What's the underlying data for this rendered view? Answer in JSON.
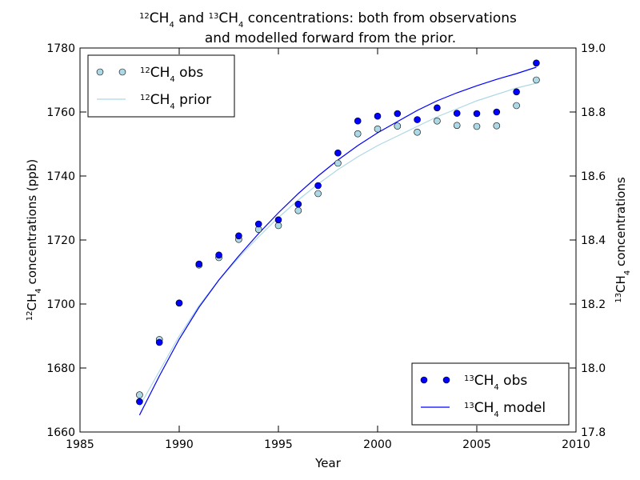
{
  "chart_data": {
    "type": "scatter",
    "title": {
      "line1_parts": [
        "12",
        "CH",
        "4",
        " and ",
        "13",
        "CH",
        "4",
        " concentrations: both from observations"
      ],
      "line2": "and modelled forward from the prior."
    },
    "xlabel": "Year",
    "ylabel_left": {
      "sup": "12",
      "main": "CH",
      "sub": "4",
      "rest": " concentrations (ppb)"
    },
    "ylabel_right": {
      "sup": "13",
      "main": "CH",
      "sub": "4",
      "rest": " concentrations"
    },
    "xlim": [
      1985,
      2010
    ],
    "ylim_left": [
      1660,
      1780
    ],
    "ylim_right": [
      17.8,
      19.0
    ],
    "x_ticks": [
      "1985",
      "1990",
      "1995",
      "2000",
      "2005",
      "2010"
    ],
    "y_left_ticks": [
      "1660",
      "1680",
      "1700",
      "1720",
      "1740",
      "1760",
      "1780"
    ],
    "y_right_ticks": [
      "17.8",
      "18.0",
      "18.2",
      "18.4",
      "18.6",
      "18.8",
      "19.0"
    ],
    "grid": false,
    "colors": {
      "obs12": "#add8e6",
      "prior12": "#add8e6",
      "obs13": "#0000ff",
      "model13": "#0000ff"
    },
    "series": [
      {
        "name": {
          "sup": "12",
          "main": "CH",
          "sub": "4",
          "rest": " obs"
        },
        "axis": "left",
        "style": "markers",
        "x": [
          1988,
          1989,
          1990,
          1991,
          1992,
          1993,
          1994,
          1995,
          1996,
          1997,
          1998,
          1999,
          2000,
          2001,
          2002,
          2003,
          2004,
          2005,
          2006,
          2007,
          2008
        ],
        "y": [
          1671.6,
          1688.9,
          1700.3,
          1712.2,
          1714.5,
          1720.2,
          1723.3,
          1724.5,
          1729.2,
          1734.5,
          1744.0,
          1753.2,
          1754.7,
          1755.6,
          1753.7,
          1757.2,
          1755.8,
          1755.5,
          1755.7,
          1762.0,
          1770.0
        ]
      },
      {
        "name": {
          "sup": "12",
          "main": "CH",
          "sub": "4",
          "rest": " prior"
        },
        "axis": "left",
        "style": "line",
        "x": [
          1988,
          1989,
          1990,
          1991,
          1992,
          1993,
          1994,
          1995,
          1996,
          1997,
          1998,
          1999,
          2000,
          2001,
          2002,
          2003,
          2004,
          2005,
          2006,
          2007,
          2008
        ],
        "y": [
          1668.0,
          1679.0,
          1690.0,
          1699.5,
          1707.5,
          1714.5,
          1721.0,
          1727.0,
          1732.5,
          1737.5,
          1742.0,
          1746.0,
          1749.5,
          1752.5,
          1755.5,
          1758.5,
          1761.0,
          1763.5,
          1765.5,
          1767.5,
          1769.0
        ]
      },
      {
        "name": {
          "sup": "13",
          "main": "CH",
          "sub": "4",
          "rest": " obs"
        },
        "axis": "right",
        "style": "markers",
        "x": [
          1988,
          1989,
          1990,
          1991,
          1992,
          1993,
          1994,
          1995,
          1996,
          1997,
          1998,
          1999,
          2000,
          2001,
          2002,
          2003,
          2004,
          2005,
          2006,
          2007,
          2008
        ],
        "y": [
          17.895,
          18.08,
          18.203,
          18.325,
          18.353,
          18.413,
          18.45,
          18.463,
          18.512,
          18.57,
          18.672,
          18.772,
          18.787,
          18.795,
          18.776,
          18.813,
          18.796,
          18.795,
          18.8,
          18.863,
          18.953
        ]
      },
      {
        "name": {
          "sup": "13",
          "main": "CH",
          "sub": "4",
          "rest": " model"
        },
        "axis": "right",
        "style": "line",
        "x": [
          1988,
          1989,
          1990,
          1991,
          1992,
          1993,
          1994,
          1995,
          1996,
          1997,
          1998,
          1999,
          2000,
          2001,
          2002,
          2003,
          2004,
          2005,
          2006,
          2007,
          2008
        ],
        "y": [
          17.853,
          17.975,
          18.09,
          18.19,
          18.275,
          18.35,
          18.42,
          18.485,
          18.545,
          18.6,
          18.65,
          18.695,
          18.735,
          18.77,
          18.805,
          18.835,
          18.86,
          18.882,
          18.902,
          18.92,
          18.94
        ]
      }
    ],
    "legends": {
      "upper": {
        "placement": "top-left",
        "series": [
          0,
          1
        ]
      },
      "lower": {
        "placement": "bottom-right",
        "series": [
          2,
          3
        ]
      }
    }
  }
}
